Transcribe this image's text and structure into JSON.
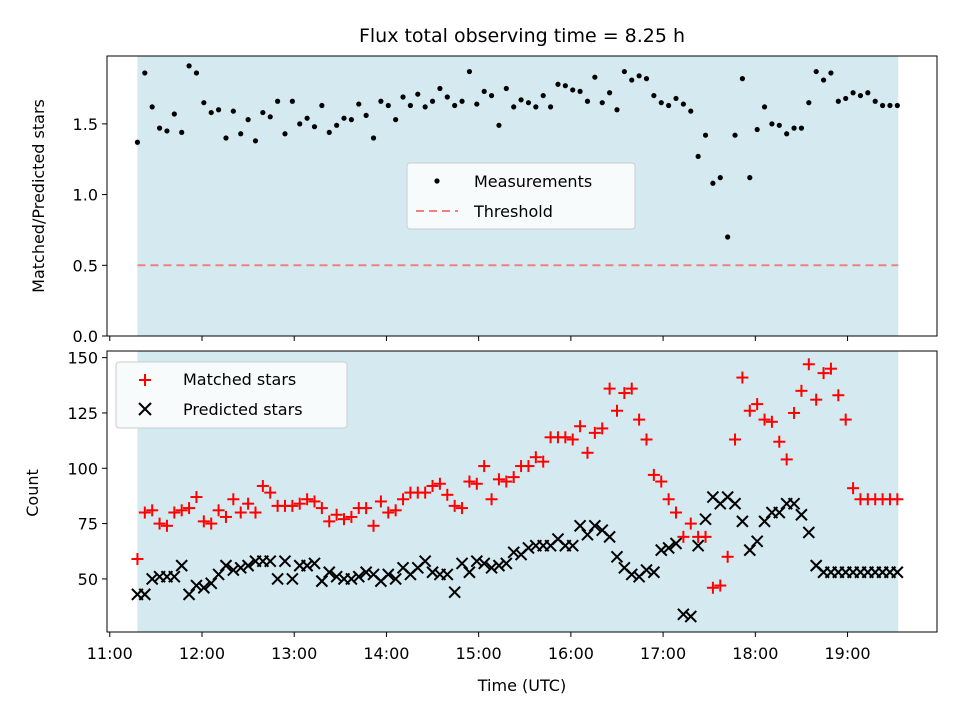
{
  "title": "Flux total observing time = 8.25 h",
  "xlabel": "Time (UTC)",
  "x_ticks": [
    "11:00",
    "12:00",
    "13:00",
    "14:00",
    "15:00",
    "16:00",
    "17:00",
    "18:00",
    "19:00"
  ],
  "colors": {
    "shade": "#d4eaf0",
    "threshold": "#f08080",
    "matched": "#ff0000",
    "predicted": "#000000",
    "measurement": "#000000"
  },
  "chart_data": [
    {
      "type": "scatter",
      "title": "Flux total observing time = 8.25 h",
      "ylabel": "Matched/Predicted stars",
      "xlim": [
        10.97,
        19.97
      ],
      "ylim": [
        0,
        1.98
      ],
      "y_ticks": [
        "0.0",
        "0.5",
        "1.0",
        "1.5"
      ],
      "observing_window": [
        11.3,
        19.55
      ],
      "legend_position": "center",
      "series": [
        {
          "name": "Measurements",
          "x": [
            11.3,
            11.38,
            11.46,
            11.54,
            11.62,
            11.7,
            11.78,
            11.86,
            11.94,
            12.02,
            12.1,
            12.18,
            12.26,
            12.34,
            12.42,
            12.5,
            12.58,
            12.66,
            12.74,
            12.82,
            12.9,
            12.98,
            13.06,
            13.14,
            13.22,
            13.3,
            13.38,
            13.46,
            13.54,
            13.62,
            13.7,
            13.78,
            13.86,
            13.94,
            14.02,
            14.1,
            14.18,
            14.26,
            14.34,
            14.42,
            14.5,
            14.58,
            14.66,
            14.74,
            14.82,
            14.9,
            14.98,
            15.06,
            15.14,
            15.22,
            15.3,
            15.38,
            15.46,
            15.54,
            15.62,
            15.7,
            15.78,
            15.86,
            15.94,
            16.02,
            16.1,
            16.18,
            16.26,
            16.34,
            16.42,
            16.5,
            16.58,
            16.66,
            16.74,
            16.82,
            16.9,
            16.98,
            17.06,
            17.14,
            17.22,
            17.3,
            17.38,
            17.46,
            17.54,
            17.62,
            17.7,
            17.78,
            17.86,
            17.94,
            18.02,
            18.1,
            18.18,
            18.26,
            18.34,
            18.42,
            18.5,
            18.58,
            18.66,
            18.74,
            18.82,
            18.9,
            18.98,
            19.06,
            19.14,
            19.22,
            19.3,
            19.38,
            19.46,
            19.54
          ],
          "y": [
            1.37,
            1.86,
            1.62,
            1.47,
            1.45,
            1.57,
            1.44,
            1.91,
            1.86,
            1.65,
            1.58,
            1.6,
            1.4,
            1.59,
            1.43,
            1.53,
            1.38,
            1.58,
            1.55,
            1.66,
            1.43,
            1.66,
            1.5,
            1.54,
            1.48,
            1.63,
            1.44,
            1.49,
            1.54,
            1.53,
            1.64,
            1.56,
            1.4,
            1.66,
            1.63,
            1.53,
            1.69,
            1.63,
            1.71,
            1.62,
            1.66,
            1.75,
            1.69,
            1.63,
            1.66,
            1.87,
            1.64,
            1.73,
            1.7,
            1.49,
            1.75,
            1.62,
            1.67,
            1.65,
            1.62,
            1.7,
            1.62,
            1.78,
            1.77,
            1.74,
            1.73,
            1.66,
            1.83,
            1.65,
            1.72,
            1.6,
            1.87,
            1.81,
            1.84,
            1.82,
            1.7,
            1.65,
            1.63,
            1.68,
            1.64,
            1.59,
            1.27,
            1.42,
            1.08,
            1.12,
            0.7,
            1.42,
            1.82,
            1.12,
            1.46,
            1.62,
            1.5,
            1.49,
            1.43,
            1.47,
            1.47,
            1.65,
            1.87,
            1.81,
            1.86,
            1.66,
            1.68,
            1.72,
            1.7,
            1.72,
            1.66,
            1.63,
            1.63,
            1.63
          ]
        },
        {
          "name": "Threshold",
          "x": [
            11.3,
            19.55
          ],
          "y": [
            0.5,
            0.5
          ]
        }
      ]
    },
    {
      "type": "scatter",
      "ylabel": "Count",
      "xlim": [
        10.97,
        19.97
      ],
      "ylim": [
        26,
        153
      ],
      "y_ticks": [
        "50",
        "75",
        "100",
        "125",
        "150"
      ],
      "observing_window": [
        11.3,
        19.55
      ],
      "legend_position": "upper left",
      "x": [
        11.3,
        11.38,
        11.46,
        11.54,
        11.62,
        11.7,
        11.78,
        11.86,
        11.94,
        12.02,
        12.1,
        12.18,
        12.26,
        12.34,
        12.42,
        12.5,
        12.58,
        12.66,
        12.74,
        12.82,
        12.9,
        12.98,
        13.06,
        13.14,
        13.22,
        13.3,
        13.38,
        13.46,
        13.54,
        13.62,
        13.7,
        13.78,
        13.86,
        13.94,
        14.02,
        14.1,
        14.18,
        14.26,
        14.34,
        14.42,
        14.5,
        14.58,
        14.66,
        14.74,
        14.82,
        14.9,
        14.98,
        15.06,
        15.14,
        15.22,
        15.3,
        15.38,
        15.46,
        15.54,
        15.62,
        15.7,
        15.78,
        15.86,
        15.94,
        16.02,
        16.1,
        16.18,
        16.26,
        16.34,
        16.42,
        16.5,
        16.58,
        16.66,
        16.74,
        16.82,
        16.9,
        16.98,
        17.06,
        17.14,
        17.22,
        17.3,
        17.38,
        17.46,
        17.54,
        17.62,
        17.7,
        17.78,
        17.86,
        17.94,
        18.02,
        18.1,
        18.18,
        18.26,
        18.34,
        18.42,
        18.5,
        18.58,
        18.66,
        18.74,
        18.82,
        18.9,
        18.98,
        19.06,
        19.14,
        19.22,
        19.3,
        19.38,
        19.46,
        19.54
      ],
      "series": [
        {
          "name": "Matched stars",
          "values": [
            59,
            80,
            81,
            75,
            74,
            80,
            81,
            82,
            87,
            76,
            75,
            81,
            78,
            86,
            80,
            84,
            80,
            92,
            89,
            83,
            83,
            83,
            84,
            86,
            85,
            82,
            76,
            79,
            77,
            78,
            82,
            82,
            74,
            85,
            80,
            81,
            86,
            89,
            89,
            89,
            92,
            93,
            88,
            83,
            82,
            94,
            93,
            101,
            86,
            95,
            94,
            96,
            101,
            101,
            105,
            103,
            114,
            114,
            114,
            113,
            119,
            107,
            116,
            118,
            136,
            126,
            134,
            136,
            122,
            113,
            97,
            94,
            86,
            80,
            69,
            75,
            69,
            69,
            46,
            47,
            60,
            113,
            141,
            126,
            129,
            122,
            121,
            112,
            104,
            125,
            135,
            147,
            131,
            143,
            145,
            133,
            122,
            91,
            86,
            86,
            86,
            86,
            86,
            86
          ],
          "values_note": ""
        },
        {
          "name": "Predicted stars",
          "values": [
            43,
            43,
            50,
            51,
            51,
            51,
            56,
            43,
            47,
            46,
            48,
            52,
            56,
            54,
            55,
            56,
            58,
            58,
            58,
            50,
            58,
            50,
            56,
            56,
            57,
            49,
            53,
            51,
            50,
            50,
            51,
            53,
            52,
            49,
            52,
            50,
            55,
            52,
            55,
            58,
            53,
            52,
            52,
            44,
            57,
            53,
            58,
            57,
            55,
            56,
            57,
            62,
            61,
            64,
            65,
            65,
            65,
            68,
            65,
            65,
            74,
            70,
            74,
            72,
            69,
            60,
            55,
            52,
            51,
            54,
            53,
            63,
            64,
            66,
            34,
            33,
            65,
            77,
            87,
            84,
            87,
            84,
            76,
            63,
            67,
            76,
            80,
            80,
            84,
            84,
            79,
            71,
            56,
            53,
            53,
            53,
            53,
            53,
            53,
            53,
            53,
            53,
            53,
            53
          ]
        }
      ]
    }
  ]
}
